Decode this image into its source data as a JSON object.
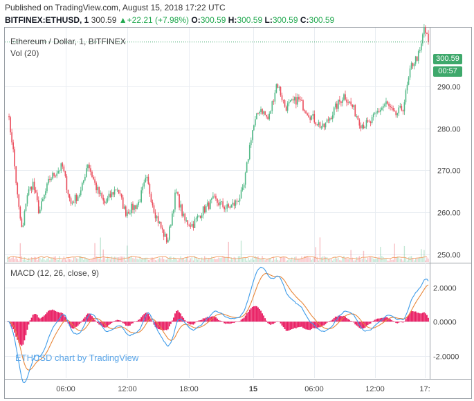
{
  "header": {
    "published": "Published on TradingView.com, August 15, 2018 17:22 UTC",
    "symbol": "BITFINEX:ETHUSD, 1",
    "price": "300.59",
    "arrow": "▲",
    "change": "+22.21 (+7.98%)",
    "o_label": "O:",
    "o": "300.59",
    "h_label": "H:",
    "h": "300.59",
    "l_label": "L:",
    "l": "300.59",
    "c_label": "C:",
    "c": "300.59"
  },
  "price_pane": {
    "title": "Ethereum / Dollar, 1, BITFINEX",
    "vol_label": "Vol (20)",
    "last_price_tag": "300.59",
    "countdown_tag": "00:57"
  },
  "macd_pane": {
    "title": "MACD (12, 26, close, 9)"
  },
  "watermark": "ETHUSD chart by TradingView",
  "colors": {
    "up": "#53b987",
    "down": "#eb4d5c",
    "macd_line": "#3d9be9",
    "signal_line": "#e8873a",
    "histogram": "#e91e63",
    "tag": "#3ea86b",
    "grid": "#e9edf2"
  },
  "chart_data": [
    {
      "type": "candlestick",
      "title": "Ethereum / Dollar, 1, BITFINEX",
      "y_axis": {
        "ticks": [
          250,
          260,
          270,
          280,
          290
        ],
        "tick_labels": [
          "250.00",
          "260.00",
          "270.00",
          "280.00",
          "290.00"
        ],
        "range": [
          248,
          304
        ]
      },
      "x_axis": {
        "tick_labels": [
          "06:00",
          "12:00",
          "18:00",
          "15",
          "06:00",
          "12:00",
          "17:"
        ]
      },
      "last_price": 300.59,
      "grid": true,
      "close_path": [
        [
          0,
          284
        ],
        [
          0.012,
          276
        ],
        [
          0.025,
          262
        ],
        [
          0.035,
          255
        ],
        [
          0.045,
          264
        ],
        [
          0.06,
          267
        ],
        [
          0.075,
          260
        ],
        [
          0.1,
          268
        ],
        [
          0.13,
          271
        ],
        [
          0.15,
          262
        ],
        [
          0.175,
          265
        ],
        [
          0.19,
          272
        ],
        [
          0.21,
          266
        ],
        [
          0.23,
          262
        ],
        [
          0.26,
          266
        ],
        [
          0.28,
          260
        ],
        [
          0.31,
          262
        ],
        [
          0.33,
          268
        ],
        [
          0.35,
          260
        ],
        [
          0.37,
          255
        ],
        [
          0.38,
          253
        ],
        [
          0.4,
          265
        ],
        [
          0.42,
          258
        ],
        [
          0.44,
          257
        ],
        [
          0.46,
          260
        ],
        [
          0.49,
          263
        ],
        [
          0.52,
          261
        ],
        [
          0.54,
          262
        ],
        [
          0.56,
          265
        ],
        [
          0.58,
          279
        ],
        [
          0.6,
          285
        ],
        [
          0.62,
          282
        ],
        [
          0.64,
          291
        ],
        [
          0.66,
          285
        ],
        [
          0.69,
          287
        ],
        [
          0.72,
          283
        ],
        [
          0.75,
          280
        ],
        [
          0.78,
          285
        ],
        [
          0.8,
          288
        ],
        [
          0.82,
          285
        ],
        [
          0.84,
          281
        ],
        [
          0.86,
          281
        ],
        [
          0.88,
          284
        ],
        [
          0.9,
          286
        ],
        [
          0.92,
          283
        ],
        [
          0.94,
          285
        ],
        [
          0.96,
          295
        ],
        [
          0.98,
          298
        ],
        [
          0.99,
          304
        ],
        [
          1.0,
          300.59
        ]
      ]
    },
    {
      "type": "bar",
      "title": "Vol (20)",
      "note": "volume bars, unlabeled values"
    },
    {
      "type": "line",
      "title": "MACD (12, 26, close, 9)",
      "y_axis": {
        "ticks": [
          2.0,
          0.0,
          -2.0
        ],
        "tick_labels": [
          "2.0000",
          "0.0000",
          "-2.0000"
        ],
        "range": [
          -3.3,
          3.4
        ]
      },
      "series": [
        {
          "color": "#3d9be9"
        },
        {
          "color": "#e8873a"
        },
        {
          "type": "histogram",
          "color": "#e91e63"
        }
      ]
    }
  ]
}
